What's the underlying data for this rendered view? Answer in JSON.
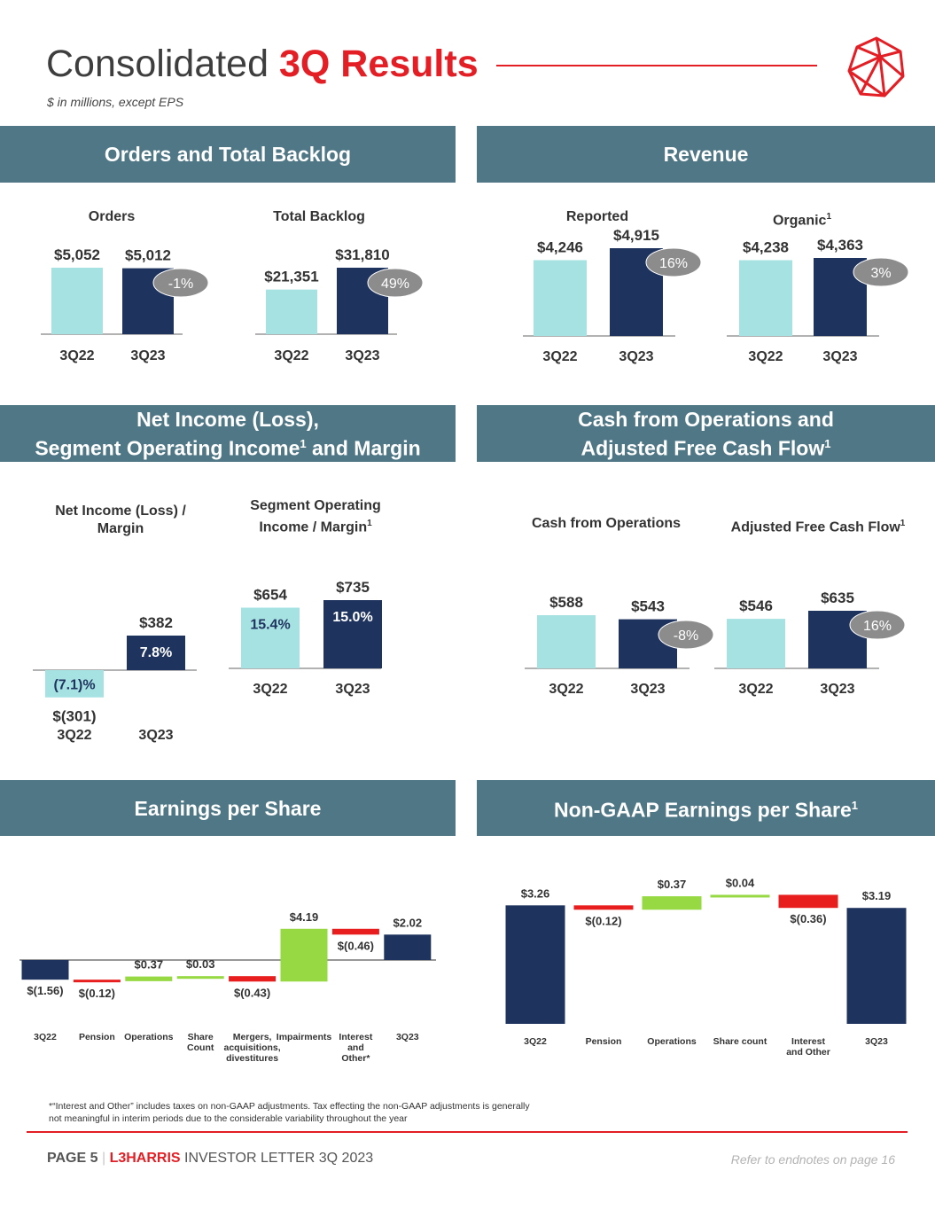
{
  "header": {
    "title_plain": "Consolidated",
    "title_accent": "3Q Results",
    "subtitle": "$ in millions, except EPS"
  },
  "colors": {
    "light_bar": "#a7e2e3",
    "dark_bar": "#1e335e",
    "green": "#96d943",
    "red": "#e81e1e",
    "bubble": "#8c8c8c",
    "banner": "#4f7785",
    "accent": "#e31e24"
  },
  "sections": {
    "orders_backlog": "Orders and Total Backlog",
    "revenue": "Revenue",
    "net_income_l1": "Net Income (Loss),",
    "net_income_l2": "Segment Operating Income",
    "net_income_l2b": " and Margin",
    "cash_l1": "Cash from Operations and",
    "cash_l2": "Adjusted Free Cash Flow",
    "eps": "Earnings per Share",
    "nongaap_eps": "Non-GAAP Earnings per Share",
    "footnote_marker": "1"
  },
  "chart_titles": {
    "orders": "Orders",
    "backlog": "Total Backlog",
    "reported": "Reported",
    "organic": "Organic",
    "net_income_l1": "Net Income (Loss)  /",
    "net_income_l2": "Margin",
    "segment_l1": "Segment Operating",
    "segment_l2": "Income / Margin",
    "cfo": "Cash from Operations",
    "afcf": "Adjusted Free Cash Flow"
  },
  "chart_data": [
    {
      "id": "orders",
      "type": "bar",
      "title": "Orders",
      "categories": [
        "3Q22",
        "3Q23"
      ],
      "values": [
        5052,
        5012
      ],
      "labels": [
        "$5,052",
        "$5,012"
      ],
      "change": "-1%"
    },
    {
      "id": "backlog",
      "type": "bar",
      "title": "Total Backlog",
      "categories": [
        "3Q22",
        "3Q23"
      ],
      "values": [
        21351,
        31810
      ],
      "labels": [
        "$21,351",
        "$31,810"
      ],
      "change": "49%"
    },
    {
      "id": "reported",
      "type": "bar",
      "title": "Reported",
      "categories": [
        "3Q22",
        "3Q23"
      ],
      "values": [
        4246,
        4915
      ],
      "labels": [
        "$4,246",
        "$4,915"
      ],
      "change": "16%"
    },
    {
      "id": "organic",
      "type": "bar",
      "title": "Organic",
      "categories": [
        "3Q22",
        "3Q23"
      ],
      "values": [
        4238,
        4363
      ],
      "labels": [
        "$4,238",
        "$4,363"
      ],
      "change": "3%"
    },
    {
      "id": "net_income",
      "type": "bar",
      "title": "Net Income (Loss) / Margin",
      "categories": [
        "3Q22",
        "3Q23"
      ],
      "values": [
        -301,
        382
      ],
      "labels": [
        "$(301)",
        "$382"
      ],
      "margins": [
        "(7.1)%",
        "7.8%"
      ]
    },
    {
      "id": "segment",
      "type": "bar",
      "title": "Segment Operating Income / Margin",
      "categories": [
        "3Q22",
        "3Q23"
      ],
      "values": [
        654,
        735
      ],
      "labels": [
        "$654",
        "$735"
      ],
      "margins": [
        "15.4%",
        "15.0%"
      ]
    },
    {
      "id": "cfo",
      "type": "bar",
      "title": "Cash from Operations",
      "categories": [
        "3Q22",
        "3Q23"
      ],
      "values": [
        588,
        543
      ],
      "labels": [
        "$588",
        "$543"
      ],
      "change": "-8%"
    },
    {
      "id": "afcf",
      "type": "bar",
      "title": "Adjusted Free Cash Flow",
      "categories": [
        "3Q22",
        "3Q23"
      ],
      "values": [
        546,
        635
      ],
      "labels": [
        "$546",
        "$635"
      ],
      "change": "16%"
    },
    {
      "id": "eps",
      "type": "waterfall",
      "title": "Earnings per Share",
      "steps": [
        {
          "label": [
            "3Q22"
          ],
          "value": -1.56,
          "kind": "total",
          "text": "$(1.56)"
        },
        {
          "label": [
            "Pension"
          ],
          "value": -0.12,
          "kind": "neg",
          "text": "$(0.12)"
        },
        {
          "label": [
            "Operations"
          ],
          "value": 0.37,
          "kind": "pos",
          "text": "$0.37"
        },
        {
          "label": [
            "Share",
            "Count"
          ],
          "value": 0.03,
          "kind": "pos",
          "text": "$0.03"
        },
        {
          "label": [
            "Mergers,",
            "acquisitions,",
            "divestitures"
          ],
          "value": -0.43,
          "kind": "neg",
          "text": "$(0.43)"
        },
        {
          "label": [
            "Impairments"
          ],
          "value": 4.19,
          "kind": "pos",
          "text": "$4.19"
        },
        {
          "label": [
            "Interest",
            "and",
            "Other*"
          ],
          "value": -0.46,
          "kind": "neg",
          "text": "$(0.46)"
        },
        {
          "label": [
            "3Q23"
          ],
          "value": 2.02,
          "kind": "total",
          "text": "$2.02"
        }
      ]
    },
    {
      "id": "nongaap",
      "type": "waterfall",
      "title": "Non-GAAP Earnings per Share",
      "steps": [
        {
          "label": [
            "3Q22"
          ],
          "value": 3.26,
          "kind": "total",
          "text": "$3.26"
        },
        {
          "label": [
            "Pension"
          ],
          "value": -0.12,
          "kind": "neg",
          "text": "$(0.12)"
        },
        {
          "label": [
            "Operations"
          ],
          "value": 0.37,
          "kind": "pos",
          "text": "$0.37"
        },
        {
          "label": [
            "Share count"
          ],
          "value": 0.04,
          "kind": "pos",
          "text": "$0.04"
        },
        {
          "label": [
            "Interest",
            "and Other"
          ],
          "value": -0.36,
          "kind": "neg",
          "text": "$(0.36)"
        },
        {
          "label": [
            "3Q23"
          ],
          "value": 3.19,
          "kind": "total",
          "text": "$3.19"
        }
      ]
    }
  ],
  "footnote": "*“Interest and Other” includes taxes on non-GAAP adjustments. Tax effecting the non-GAAP adjustments is generally not meaningful in interim periods due to the considerable variability throughout the year",
  "footer": {
    "page": "PAGE 5",
    "separator": "|",
    "brand": "L3HARRIS",
    "doc": "INVESTOR LETTER 3Q 2023",
    "endnotes": "Refer to endnotes on page 16"
  }
}
